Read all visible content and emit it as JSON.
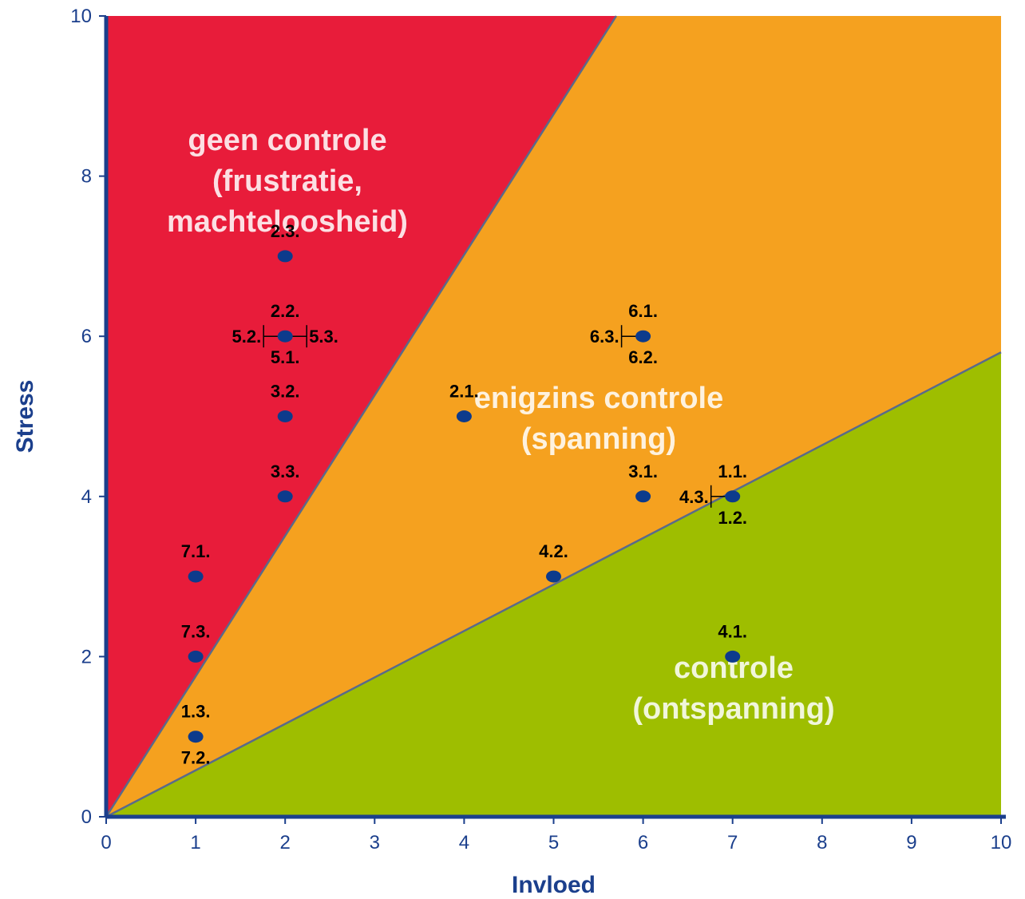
{
  "chart_data": {
    "type": "scatter",
    "title": "",
    "xlabel": "Invloed",
    "ylabel": "Stress",
    "xlim": [
      0,
      10
    ],
    "ylim": [
      0,
      10
    ],
    "x_ticks": [
      "0",
      "1",
      "2",
      "3",
      "4",
      "5",
      "6",
      "7",
      "8",
      "9",
      "10"
    ],
    "y_ticks": [
      "0",
      "2",
      "4",
      "6",
      "8",
      "10"
    ],
    "grid": false,
    "colors": {
      "red_zone": "#e81c3a",
      "orange_zone": "#f5a11f",
      "green_zone": "#9ebe00",
      "point": "#0d3b8c",
      "axis": "#1b3f8c"
    },
    "zones": [
      {
        "name": "red",
        "boundary_top_x": 5.7,
        "label_lines": [
          "geen controle",
          "(frustratie,",
          "machteloosheid)"
        ]
      },
      {
        "name": "orange",
        "label_lines": [
          "enigzins controle",
          "(spanning)"
        ]
      },
      {
        "name": "green",
        "boundary_right_y": 5.8,
        "label_lines": [
          "controle",
          "(ontspanning)"
        ]
      }
    ],
    "points": [
      {
        "x": 2,
        "y": 7,
        "labels_above": [
          "2.3."
        ]
      },
      {
        "x": 2,
        "y": 6,
        "labels_above": [
          "2.2."
        ],
        "labels_below": [
          "5.1."
        ],
        "label_left": "5.2.",
        "label_right": "5.3."
      },
      {
        "x": 2,
        "y": 5,
        "labels_above": [
          "3.2."
        ]
      },
      {
        "x": 2,
        "y": 4,
        "labels_above": [
          "3.3."
        ]
      },
      {
        "x": 1,
        "y": 3,
        "labels_above": [
          "7.1."
        ]
      },
      {
        "x": 1,
        "y": 2,
        "labels_above": [
          "7.3."
        ]
      },
      {
        "x": 1,
        "y": 1,
        "labels_above": [
          "1.3."
        ],
        "labels_below": [
          "7.2."
        ]
      },
      {
        "x": 4,
        "y": 5,
        "labels_above": [
          "2.1."
        ]
      },
      {
        "x": 6,
        "y": 6,
        "labels_above": [
          "6.1."
        ],
        "labels_below": [
          "6.2."
        ],
        "label_left": "6.3."
      },
      {
        "x": 6,
        "y": 4,
        "labels_above": [
          "3.1."
        ]
      },
      {
        "x": 7,
        "y": 4,
        "labels_above": [
          "1.1."
        ],
        "labels_below": [
          "1.2."
        ],
        "label_left": "4.3."
      },
      {
        "x": 5,
        "y": 3,
        "labels_above": [
          "4.2."
        ]
      },
      {
        "x": 7,
        "y": 2,
        "labels_above": [
          "4.1."
        ]
      }
    ]
  }
}
